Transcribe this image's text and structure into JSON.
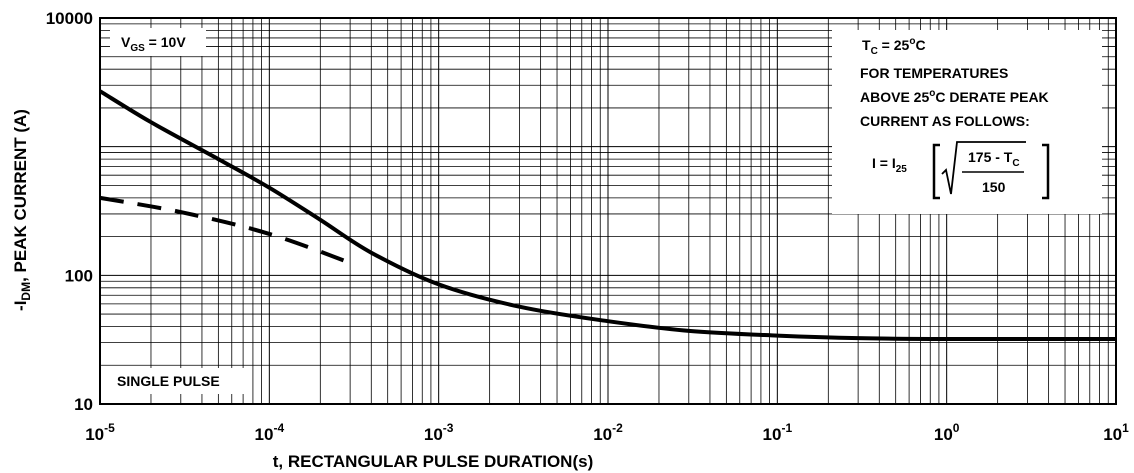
{
  "chart_data": {
    "type": "line",
    "xlabel": "t, RECTANGULAR PULSE DURATION(s)",
    "ylabel": {
      "prefix": "-I",
      "sub": "DM",
      "rest": ", PEAK CURRENT (A)"
    },
    "x_scale": "log",
    "y_scale": "log",
    "xlim": [
      1e-05,
      10
    ],
    "ylim": [
      10,
      10000
    ],
    "grid": true,
    "x_tick_labels": [
      {
        "value": 1e-05,
        "base": "10",
        "exp": "-5"
      },
      {
        "value": 0.0001,
        "base": "10",
        "exp": "-4"
      },
      {
        "value": 0.001,
        "base": "10",
        "exp": "-3"
      },
      {
        "value": 0.01,
        "base": "10",
        "exp": "-2"
      },
      {
        "value": 0.1,
        "base": "10",
        "exp": "-1"
      },
      {
        "value": 1,
        "base": "10",
        "exp": "0"
      },
      {
        "value": 10,
        "base": "10",
        "exp": "1"
      }
    ],
    "y_tick_labels": [
      {
        "value": 10,
        "label": "10"
      },
      {
        "value": 100,
        "label": "100"
      },
      {
        "value": 10000,
        "label": "10000"
      }
    ],
    "series": [
      {
        "style": "solid",
        "x": [
          1e-05,
          2e-05,
          5e-05,
          0.0001,
          0.0002,
          0.0004,
          0.001,
          0.003,
          0.01,
          0.03,
          0.1,
          0.3,
          1,
          3,
          10
        ],
        "y": [
          2700,
          1550,
          800,
          480,
          270,
          150,
          85,
          57,
          44,
          37,
          34,
          32.5,
          32,
          32,
          32
        ]
      },
      {
        "style": "dashed",
        "x": [
          1e-05,
          3e-05,
          0.0001,
          0.0003
        ],
        "y": [
          400,
          310,
          210,
          125
        ]
      }
    ],
    "annotations": {
      "vgs": {
        "v": "V",
        "sub": "GS",
        "rest": " = 10V"
      },
      "single_pulse": "SINGLE PULSE",
      "tc": {
        "t": "T",
        "sub": "C",
        "rest": " = 25",
        "sup": "o",
        "unit": "C"
      },
      "derate_lines": [
        "FOR TEMPERATURES",
        "ABOVE 25",
        "C DERATE PEAK",
        "CURRENT AS FOLLOWS:"
      ],
      "derate_sup": "o",
      "formula": {
        "lhs": "I = I",
        "lhs_sub": "25",
        "numerator": "175 - T",
        "numerator_sub": "C",
        "denominator": "150"
      }
    }
  }
}
